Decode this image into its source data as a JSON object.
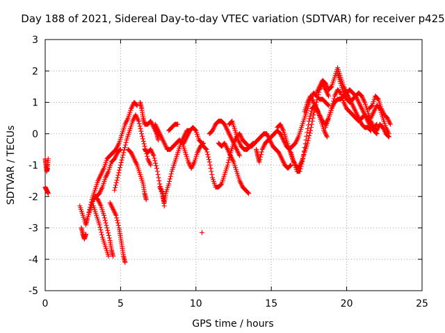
{
  "chart_data": {
    "type": "scatter",
    "title": "Day 188 of 2021, Sidereal Day-to-day VTEC variation (SDTVAR) for receiver p425",
    "xlabel": "GPS time / hours",
    "ylabel": "SDTVAR / TECUs",
    "xlim": [
      0,
      25
    ],
    "ylim": [
      -5,
      3
    ],
    "xticks": [
      0,
      5,
      10,
      15,
      20,
      25
    ],
    "yticks": [
      -5,
      -4,
      -3,
      -2,
      -1,
      0,
      1,
      2,
      3
    ],
    "grid": true,
    "marker": "+",
    "color": "#ff0000",
    "tracks": [
      [
        [
          0.0,
          -0.8
        ],
        [
          0.05,
          -1.0
        ],
        [
          0.1,
          -1.2
        ],
        [
          0.15,
          -1.1
        ],
        [
          0.2,
          -0.8
        ]
      ],
      [
        [
          0.0,
          -1.7
        ],
        [
          0.1,
          -1.8
        ],
        [
          0.2,
          -1.9
        ]
      ],
      [
        [
          2.3,
          -2.3
        ],
        [
          2.5,
          -2.6
        ],
        [
          2.7,
          -2.9
        ],
        [
          2.8,
          -2.7
        ],
        [
          3.0,
          -2.4
        ],
        [
          3.2,
          -2.1
        ],
        [
          3.4,
          -2.0
        ],
        [
          3.6,
          -1.9
        ],
        [
          3.8,
          -1.7
        ],
        [
          4.0,
          -1.4
        ],
        [
          4.2,
          -1.2
        ],
        [
          4.4,
          -0.9
        ],
        [
          4.6,
          -0.8
        ],
        [
          4.8,
          -0.6
        ],
        [
          5.0,
          -0.5
        ]
      ],
      [
        [
          2.4,
          -3.0
        ],
        [
          2.5,
          -3.2
        ],
        [
          2.6,
          -3.35
        ],
        [
          2.7,
          -3.2
        ]
      ],
      [
        [
          2.9,
          -2.5
        ],
        [
          3.1,
          -2.1
        ],
        [
          3.3,
          -1.8
        ],
        [
          3.5,
          -1.5
        ],
        [
          3.7,
          -1.3
        ],
        [
          3.9,
          -1.1
        ],
        [
          4.1,
          -0.8
        ],
        [
          4.3,
          -0.7
        ],
        [
          4.5,
          -0.6
        ],
        [
          4.7,
          -0.5
        ],
        [
          4.9,
          -0.3
        ],
        [
          5.1,
          0.0
        ],
        [
          5.3,
          0.3
        ],
        [
          5.5,
          0.5
        ],
        [
          5.7,
          0.8
        ],
        [
          5.9,
          1.0
        ],
        [
          6.1,
          0.9
        ]
      ],
      [
        [
          3.3,
          -2.0
        ],
        [
          3.5,
          -2.1
        ],
        [
          3.7,
          -2.3
        ],
        [
          3.9,
          -2.6
        ],
        [
          4.1,
          -3.0
        ],
        [
          4.3,
          -3.4
        ],
        [
          4.4,
          -3.7
        ],
        [
          4.5,
          -3.9
        ]
      ],
      [
        [
          3.2,
          -2.3
        ],
        [
          3.4,
          -2.6
        ],
        [
          3.6,
          -2.9
        ],
        [
          3.8,
          -3.3
        ],
        [
          4.0,
          -3.6
        ],
        [
          4.2,
          -3.9
        ]
      ],
      [
        [
          4.3,
          -2.2
        ],
        [
          4.5,
          -2.4
        ],
        [
          4.7,
          -2.6
        ],
        [
          4.9,
          -3.0
        ],
        [
          5.0,
          -3.3
        ],
        [
          5.1,
          -3.6
        ],
        [
          5.2,
          -3.9
        ],
        [
          5.3,
          -4.1
        ]
      ],
      [
        [
          4.6,
          -1.8
        ],
        [
          4.8,
          -1.4
        ],
        [
          5.0,
          -1.0
        ],
        [
          5.2,
          -0.6
        ],
        [
          5.4,
          -0.2
        ],
        [
          5.6,
          0.1
        ],
        [
          5.8,
          0.4
        ],
        [
          6.0,
          0.6
        ],
        [
          6.2,
          0.4
        ],
        [
          6.4,
          0.0
        ],
        [
          6.6,
          -0.4
        ],
        [
          6.8,
          -0.8
        ],
        [
          7.0,
          -1.0
        ]
      ],
      [
        [
          5.5,
          -0.5
        ],
        [
          5.7,
          -0.6
        ],
        [
          5.9,
          -0.8
        ],
        [
          6.1,
          -1.0
        ],
        [
          6.3,
          -1.3
        ],
        [
          6.5,
          -1.6
        ],
        [
          6.6,
          -1.9
        ],
        [
          6.7,
          -2.1
        ]
      ],
      [
        [
          6.3,
          1.0
        ],
        [
          6.4,
          0.8
        ],
        [
          6.5,
          0.5
        ],
        [
          6.6,
          0.3
        ],
        [
          6.8,
          0.3
        ],
        [
          7.0,
          0.4
        ],
        [
          7.2,
          0.2
        ],
        [
          7.4,
          0.0
        ],
        [
          7.5,
          -0.2
        ]
      ],
      [
        [
          6.6,
          -0.5
        ],
        [
          6.8,
          -0.6
        ],
        [
          7.0,
          -0.5
        ],
        [
          7.2,
          -0.7
        ],
        [
          7.4,
          -1.1
        ],
        [
          7.6,
          -1.6
        ],
        [
          7.8,
          -2.0
        ],
        [
          7.9,
          -2.2
        ],
        [
          8.0,
          -1.9
        ],
        [
          8.2,
          -1.6
        ],
        [
          8.4,
          -1.2
        ],
        [
          8.6,
          -0.9
        ],
        [
          8.8,
          -0.6
        ],
        [
          9.0,
          -0.3
        ],
        [
          9.2,
          -0.1
        ],
        [
          9.4,
          0.1
        ],
        [
          9.6,
          0.1
        ]
      ],
      [
        [
          7.6,
          -1.7
        ],
        [
          7.8,
          -1.9
        ],
        [
          7.9,
          -2.3
        ]
      ],
      [
        [
          7.3,
          0.3
        ],
        [
          7.5,
          0.1
        ],
        [
          7.7,
          -0.1
        ],
        [
          7.9,
          -0.3
        ],
        [
          8.1,
          -0.5
        ],
        [
          8.3,
          -0.5
        ],
        [
          8.5,
          -0.4
        ],
        [
          8.7,
          -0.3
        ],
        [
          8.9,
          -0.2
        ],
        [
          9.1,
          -0.3
        ],
        [
          9.3,
          -0.6
        ],
        [
          9.5,
          -0.9
        ],
        [
          9.7,
          -1.1
        ],
        [
          9.9,
          -0.9
        ],
        [
          10.1,
          -0.6
        ],
        [
          10.3,
          -0.4
        ],
        [
          10.5,
          -0.3
        ]
      ],
      [
        [
          8.2,
          0.1
        ],
        [
          8.4,
          0.2
        ],
        [
          8.6,
          0.3
        ],
        [
          8.8,
          0.3
        ]
      ],
      [
        [
          9.2,
          -0.3
        ],
        [
          9.4,
          -0.1
        ],
        [
          9.6,
          0.1
        ],
        [
          9.8,
          0.2
        ],
        [
          10.0,
          0.1
        ],
        [
          10.2,
          -0.2
        ],
        [
          10.4,
          -0.3
        ]
      ],
      [
        [
          10.5,
          -0.4
        ],
        [
          10.7,
          -0.5
        ],
        [
          10.9,
          -0.9
        ],
        [
          11.1,
          -1.4
        ],
        [
          11.3,
          -1.7
        ],
        [
          11.5,
          -1.7
        ],
        [
          11.7,
          -1.6
        ],
        [
          11.9,
          -1.3
        ],
        [
          12.1,
          -1.0
        ],
        [
          12.3,
          -0.6
        ],
        [
          12.5,
          -0.3
        ],
        [
          12.7,
          -0.1
        ],
        [
          12.9,
          0.0
        ],
        [
          13.1,
          -0.2
        ],
        [
          13.3,
          -0.3
        ],
        [
          13.5,
          -0.4
        ],
        [
          13.7,
          -0.4
        ],
        [
          13.9,
          -0.3
        ],
        [
          14.1,
          -0.2
        ],
        [
          14.3,
          -0.1
        ],
        [
          14.5,
          0.0
        ],
        [
          14.7,
          0.0
        ],
        [
          14.9,
          -0.2
        ],
        [
          15.1,
          -0.4
        ],
        [
          15.3,
          -0.5
        ],
        [
          15.5,
          -0.6
        ],
        [
          15.7,
          -0.8
        ],
        [
          15.9,
          -1.0
        ],
        [
          16.1,
          -1.1
        ],
        [
          16.3,
          -1.0
        ]
      ],
      [
        [
          10.9,
          0.0
        ],
        [
          11.1,
          0.1
        ],
        [
          11.3,
          0.3
        ],
        [
          11.5,
          0.4
        ],
        [
          11.7,
          0.4
        ],
        [
          11.9,
          0.3
        ],
        [
          12.1,
          0.1
        ],
        [
          12.3,
          -0.1
        ],
        [
          12.5,
          -0.3
        ],
        [
          12.7,
          -0.5
        ],
        [
          12.9,
          -0.7
        ]
      ],
      [
        [
          11.5,
          -0.3
        ],
        [
          11.7,
          -0.4
        ],
        [
          11.9,
          -0.3
        ],
        [
          12.1,
          -0.5
        ],
        [
          12.3,
          -0.7
        ],
        [
          12.5,
          -0.9
        ],
        [
          12.7,
          -1.2
        ],
        [
          12.9,
          -1.5
        ],
        [
          13.1,
          -1.7
        ],
        [
          13.3,
          -1.8
        ],
        [
          13.5,
          -1.9
        ]
      ],
      [
        [
          10.4,
          -3.15
        ]
      ],
      [
        [
          12.2,
          0.3
        ],
        [
          12.4,
          0.4
        ],
        [
          12.6,
          0.1
        ],
        [
          12.8,
          -0.2
        ],
        [
          13.0,
          -0.4
        ],
        [
          13.2,
          -0.5
        ],
        [
          13.4,
          -0.5
        ],
        [
          13.6,
          -0.4
        ],
        [
          13.8,
          -0.3
        ]
      ],
      [
        [
          14.0,
          -0.5
        ],
        [
          14.1,
          -0.7
        ],
        [
          14.2,
          -0.9
        ],
        [
          14.4,
          -0.5
        ],
        [
          14.6,
          -0.3
        ],
        [
          14.8,
          -0.2
        ],
        [
          15.0,
          -0.1
        ],
        [
          15.2,
          0.0
        ],
        [
          15.4,
          0.1
        ],
        [
          15.6,
          0.0
        ],
        [
          15.8,
          -0.2
        ],
        [
          16.0,
          -0.4
        ],
        [
          16.2,
          -0.5
        ],
        [
          16.4,
          -0.4
        ],
        [
          16.6,
          -0.3
        ],
        [
          16.8,
          -0.1
        ],
        [
          17.0,
          0.2
        ],
        [
          17.2,
          0.5
        ],
        [
          17.4,
          0.8
        ],
        [
          17.6,
          1.1
        ],
        [
          17.8,
          1.3
        ],
        [
          18.0,
          1.2
        ],
        [
          18.2,
          1.1
        ],
        [
          18.4,
          1.1
        ],
        [
          18.6,
          1.0
        ],
        [
          18.8,
          0.9
        ]
      ],
      [
        [
          15.4,
          0.2
        ],
        [
          15.6,
          0.3
        ],
        [
          15.8,
          0.1
        ],
        [
          16.0,
          -0.2
        ],
        [
          16.2,
          -0.5
        ],
        [
          16.4,
          -0.8
        ],
        [
          16.6,
          -1.0
        ],
        [
          16.8,
          -1.1
        ],
        [
          17.0,
          -0.9
        ],
        [
          17.2,
          -0.6
        ],
        [
          17.4,
          -0.3
        ],
        [
          17.6,
          0.1
        ],
        [
          17.8,
          0.6
        ],
        [
          18.0,
          1.0
        ],
        [
          18.2,
          1.4
        ],
        [
          18.4,
          1.6
        ],
        [
          18.6,
          1.4
        ],
        [
          18.8,
          1.2
        ]
      ],
      [
        [
          16.3,
          -0.6
        ],
        [
          16.5,
          -0.9
        ],
        [
          16.7,
          -1.2
        ],
        [
          16.9,
          -1.2
        ],
        [
          17.1,
          -0.8
        ],
        [
          17.3,
          -0.2
        ],
        [
          17.5,
          0.4
        ],
        [
          17.7,
          0.8
        ],
        [
          17.9,
          0.9
        ],
        [
          18.1,
          0.7
        ],
        [
          18.3,
          0.4
        ],
        [
          18.5,
          0.1
        ],
        [
          18.7,
          -0.1
        ]
      ],
      [
        [
          17.2,
          0.7
        ],
        [
          17.4,
          1.0
        ],
        [
          17.6,
          1.2
        ],
        [
          17.8,
          1.0
        ],
        [
          18.0,
          0.8
        ],
        [
          18.2,
          0.6
        ],
        [
          18.4,
          0.4
        ],
        [
          18.6,
          0.3
        ],
        [
          18.8,
          0.5
        ],
        [
          19.0,
          0.8
        ],
        [
          19.2,
          1.0
        ],
        [
          19.4,
          1.1
        ],
        [
          19.6,
          1.1
        ],
        [
          19.8,
          1.2
        ],
        [
          20.0,
          1.3
        ],
        [
          20.2,
          1.4
        ],
        [
          20.4,
          1.3
        ],
        [
          20.6,
          1.2
        ],
        [
          20.8,
          1.0
        ],
        [
          21.0,
          0.8
        ],
        [
          21.2,
          0.6
        ],
        [
          21.4,
          0.4
        ],
        [
          21.6,
          0.2
        ],
        [
          21.8,
          0.2
        ],
        [
          22.0,
          0.3
        ]
      ],
      [
        [
          18.0,
          1.3
        ],
        [
          18.2,
          1.5
        ],
        [
          18.4,
          1.7
        ],
        [
          18.6,
          1.6
        ],
        [
          18.8,
          1.4
        ],
        [
          19.0,
          1.5
        ],
        [
          19.2,
          1.8
        ],
        [
          19.4,
          2.1
        ],
        [
          19.6,
          1.8
        ],
        [
          19.8,
          1.5
        ],
        [
          20.0,
          1.3
        ],
        [
          20.2,
          1.1
        ],
        [
          20.4,
          0.9
        ],
        [
          20.6,
          0.7
        ],
        [
          20.8,
          0.5
        ],
        [
          21.0,
          0.3
        ],
        [
          21.2,
          0.2
        ],
        [
          21.4,
          0.2
        ],
        [
          21.6,
          0.1
        ]
      ],
      [
        [
          18.6,
          0.2
        ],
        [
          18.8,
          0.5
        ],
        [
          19.0,
          0.8
        ],
        [
          19.2,
          1.2
        ],
        [
          19.4,
          1.4
        ],
        [
          19.6,
          1.3
        ],
        [
          19.8,
          1.0
        ],
        [
          20.0,
          0.8
        ],
        [
          20.2,
          0.7
        ],
        [
          20.4,
          0.6
        ],
        [
          20.6,
          0.5
        ],
        [
          20.8,
          0.4
        ],
        [
          21.0,
          0.5
        ],
        [
          21.2,
          0.6
        ],
        [
          21.4,
          0.5
        ],
        [
          21.6,
          0.3
        ],
        [
          21.8,
          0.1
        ],
        [
          22.0,
          0.0
        ]
      ],
      [
        [
          19.4,
          1.9
        ],
        [
          19.6,
          1.6
        ],
        [
          19.8,
          1.3
        ],
        [
          20.0,
          1.1
        ],
        [
          20.2,
          1.0
        ],
        [
          20.4,
          1.1
        ],
        [
          20.6,
          1.2
        ],
        [
          20.8,
          1.3
        ],
        [
          21.0,
          1.2
        ],
        [
          21.2,
          1.0
        ],
        [
          21.4,
          0.7
        ],
        [
          21.6,
          0.4
        ],
        [
          21.8,
          0.2
        ],
        [
          22.0,
          0.1
        ],
        [
          22.2,
          0.3
        ],
        [
          22.4,
          0.2
        ],
        [
          22.6,
          0.0
        ],
        [
          22.8,
          -0.1
        ]
      ],
      [
        [
          21.5,
          0.8
        ],
        [
          21.7,
          0.9
        ],
        [
          21.9,
          1.2
        ],
        [
          22.1,
          1.1
        ],
        [
          22.3,
          0.8
        ],
        [
          22.5,
          0.6
        ],
        [
          22.7,
          0.5
        ],
        [
          22.9,
          0.3
        ]
      ],
      [
        [
          21.6,
          0.5
        ],
        [
          21.8,
          0.7
        ],
        [
          22.0,
          0.9
        ],
        [
          22.2,
          0.8
        ],
        [
          22.4,
          0.5
        ],
        [
          22.6,
          0.2
        ],
        [
          22.8,
          0.0
        ]
      ]
    ]
  }
}
